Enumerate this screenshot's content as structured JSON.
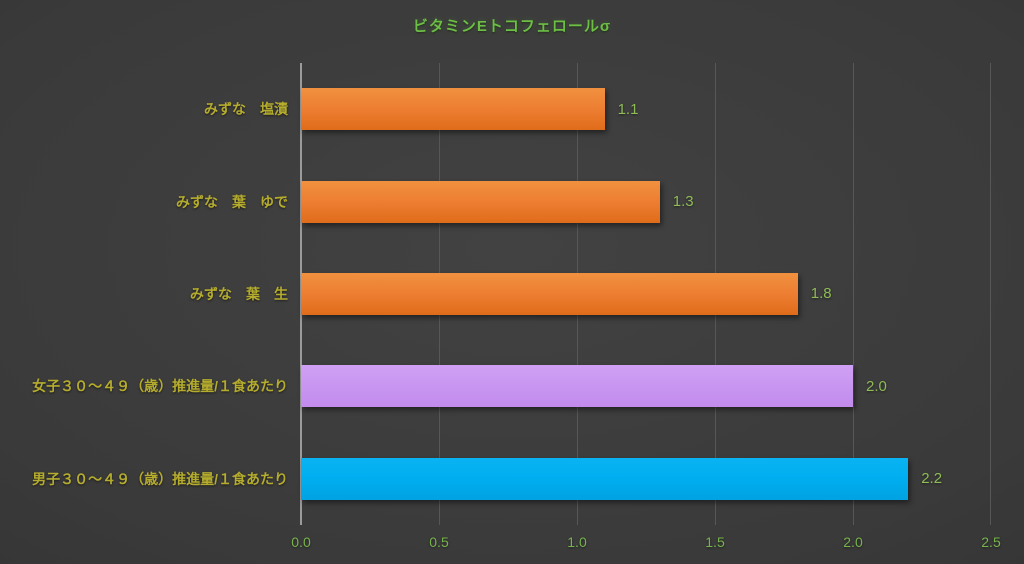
{
  "title": "ビタミンEトコフェロールσ",
  "colors": {
    "background_center": "#424242",
    "background_edge": "#2a2a2a",
    "title_text": "#6cbe45",
    "category_label_text": "#b5ac2e",
    "value_label_text": "#8fbc56",
    "axis_tick_text": "#77b44c",
    "gridline": "#575757",
    "axis_line": "#9b9b9b",
    "bar_orange": "#ed7d31",
    "bar_purple": "#c896f0",
    "bar_blue": "#00aeef"
  },
  "chart_data": {
    "type": "bar",
    "orientation": "horizontal",
    "title": "ビタミンEトコフェロールσ",
    "categories": [
      "みずな　塩漬",
      "みずな　葉　ゆで",
      "みずな　葉　生",
      "女子３０～４９（歳）推進量/１食あたり",
      "男子３０～４９（歳）推進量/１食あたり"
    ],
    "values": [
      1.1,
      1.3,
      1.8,
      2.0,
      2.2
    ],
    "value_labels": [
      "1.1",
      "1.3",
      "1.8",
      "2.0",
      "2.2"
    ],
    "bar_series": [
      "orange",
      "orange",
      "orange",
      "purple",
      "blue"
    ],
    "xlabel": "",
    "ylabel": "",
    "xlim": [
      0.0,
      2.5
    ],
    "x_ticks": [
      "0.0",
      "0.5",
      "1.0",
      "1.5",
      "2.0",
      "2.5"
    ],
    "x_tick_values": [
      0.0,
      0.5,
      1.0,
      1.5,
      2.0,
      2.5
    ],
    "grid": true,
    "legend": false,
    "data_labels": true
  }
}
